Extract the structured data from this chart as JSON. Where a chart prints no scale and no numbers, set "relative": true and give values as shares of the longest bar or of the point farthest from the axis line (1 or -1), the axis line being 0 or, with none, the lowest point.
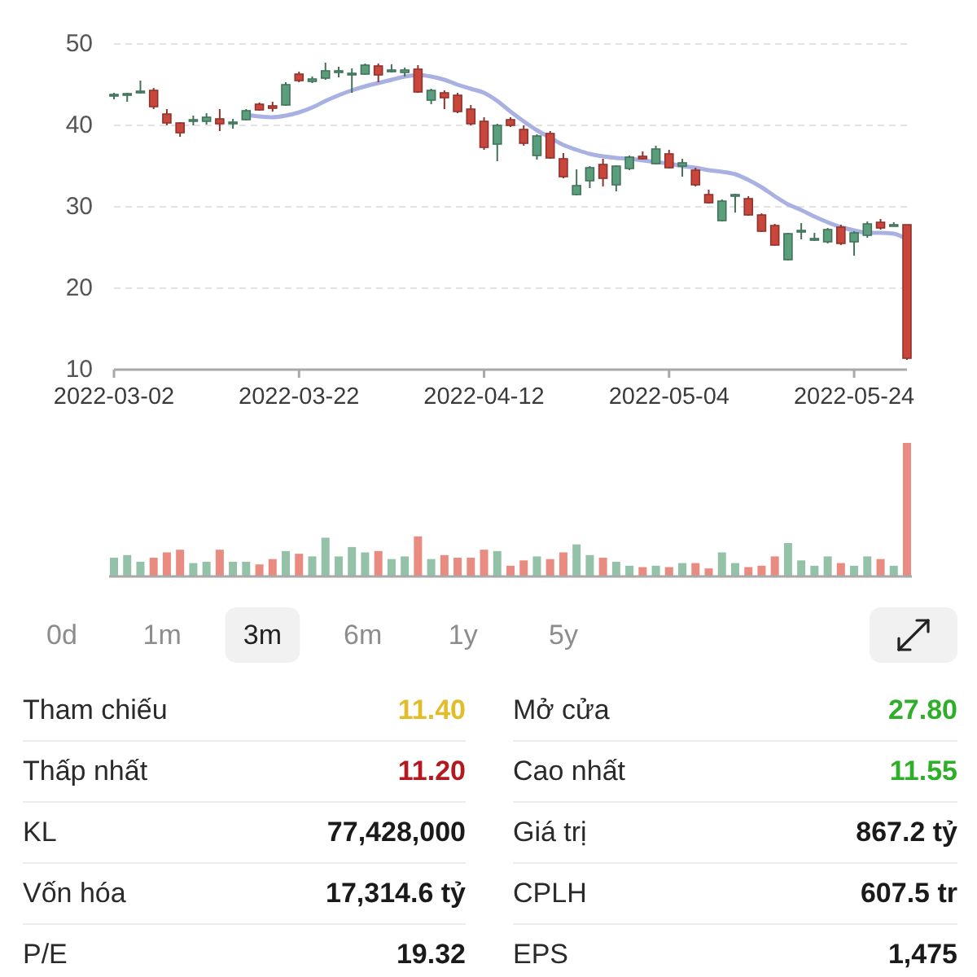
{
  "chart_data": [
    {
      "type": "candlestick",
      "categories": [
        "2022-03-02",
        null,
        null,
        null,
        null,
        null,
        null,
        null,
        null,
        null,
        null,
        null,
        null,
        null,
        "2022-03-22",
        null,
        null,
        null,
        null,
        null,
        null,
        null,
        null,
        null,
        null,
        null,
        null,
        null,
        "2022-04-12",
        null,
        null,
        null,
        null,
        null,
        null,
        null,
        null,
        null,
        null,
        null,
        null,
        null,
        "2022-05-04",
        null,
        null,
        null,
        null,
        null,
        null,
        null,
        null,
        null,
        null,
        null,
        null,
        null,
        "2022-05-24",
        null,
        null,
        null,
        null
      ],
      "ohlc": [
        [
          43.6,
          44.0,
          43.2,
          43.8
        ],
        [
          43.8,
          44.0,
          42.9,
          43.9
        ],
        [
          44.0,
          45.5,
          43.9,
          44.2
        ],
        [
          44.3,
          44.6,
          42.0,
          42.3
        ],
        [
          41.4,
          42.0,
          40.0,
          40.3
        ],
        [
          40.3,
          40.4,
          38.6,
          39.1
        ],
        [
          40.5,
          41.2,
          40.0,
          40.7
        ],
        [
          40.5,
          41.5,
          40.1,
          41.0
        ],
        [
          40.8,
          42.0,
          39.3,
          40.2
        ],
        [
          40.2,
          40.8,
          39.6,
          40.4
        ],
        [
          40.7,
          42.0,
          40.6,
          41.8
        ],
        [
          42.6,
          42.8,
          41.8,
          41.9
        ],
        [
          42.4,
          42.9,
          41.7,
          42.1
        ],
        [
          42.5,
          45.3,
          42.4,
          45.0
        ],
        [
          46.3,
          46.6,
          45.3,
          45.5
        ],
        [
          45.4,
          46.0,
          45.2,
          45.7
        ],
        [
          45.8,
          47.7,
          45.6,
          46.7
        ],
        [
          46.5,
          47.2,
          45.9,
          46.7
        ],
        [
          46.2,
          47.0,
          44.0,
          46.4
        ],
        [
          46.3,
          47.6,
          46.2,
          47.4
        ],
        [
          47.3,
          47.6,
          45.3,
          46.2
        ],
        [
          46.6,
          47.5,
          46.5,
          46.8
        ],
        [
          46.5,
          47.1,
          46.0,
          46.8
        ],
        [
          46.9,
          47.4,
          44.0,
          44.1
        ],
        [
          43.1,
          44.5,
          42.6,
          44.3
        ],
        [
          44.0,
          44.3,
          42.0,
          43.4
        ],
        [
          43.7,
          44.0,
          41.5,
          41.7
        ],
        [
          42.0,
          42.5,
          40.0,
          40.2
        ],
        [
          40.5,
          41.0,
          37.0,
          37.3
        ],
        [
          37.7,
          40.2,
          35.6,
          40.0
        ],
        [
          40.7,
          41.0,
          39.8,
          40.0
        ],
        [
          39.5,
          40.0,
          37.5,
          37.8
        ],
        [
          36.3,
          38.9,
          35.8,
          38.7
        ],
        [
          39.0,
          39.3,
          35.9,
          36.0
        ],
        [
          35.9,
          36.6,
          33.5,
          33.7
        ],
        [
          31.5,
          34.6,
          31.4,
          32.6
        ],
        [
          33.2,
          35.0,
          32.3,
          34.8
        ],
        [
          35.2,
          35.9,
          32.5,
          33.5
        ],
        [
          32.7,
          35.1,
          31.9,
          35.0
        ],
        [
          34.7,
          36.3,
          34.5,
          36.1
        ],
        [
          36.2,
          36.8,
          35.8,
          35.9
        ],
        [
          35.3,
          37.5,
          35.2,
          37.1
        ],
        [
          36.5,
          37.0,
          34.7,
          34.8
        ],
        [
          35.0,
          35.9,
          33.7,
          35.4
        ],
        [
          34.5,
          34.8,
          32.5,
          32.7
        ],
        [
          31.5,
          32.1,
          30.4,
          30.5
        ],
        [
          28.3,
          30.9,
          28.2,
          30.7
        ],
        [
          31.3,
          31.6,
          29.3,
          31.5
        ],
        [
          31.0,
          31.3,
          28.9,
          29.0
        ],
        [
          29.0,
          29.2,
          26.9,
          27.0
        ],
        [
          27.7,
          27.9,
          25.2,
          25.3
        ],
        [
          23.5,
          26.8,
          23.4,
          26.7
        ],
        [
          26.9,
          28.0,
          26.0,
          27.1
        ],
        [
          25.9,
          26.8,
          25.8,
          26.1
        ],
        [
          25.7,
          27.4,
          25.5,
          27.2
        ],
        [
          27.5,
          27.8,
          25.3,
          25.5
        ],
        [
          25.7,
          27.0,
          24.0,
          26.8
        ],
        [
          26.5,
          28.2,
          26.2,
          27.9
        ],
        [
          28.1,
          28.5,
          27.2,
          27.4
        ],
        [
          27.7,
          28.1,
          27.6,
          27.8
        ],
        [
          27.8,
          27.8,
          11.2,
          11.4
        ]
      ],
      "colors": [
        "#5a9e7c",
        "#5a9e7c",
        "#5a9e7c",
        "#c8463c",
        "#c8463c",
        "#c8463c",
        "#5a9e7c",
        "#5a9e7c",
        "#c8463c",
        "#5a9e7c",
        "#5a9e7c",
        "#c8463c",
        "#c8463c",
        "#5a9e7c",
        "#c8463c",
        "#5a9e7c",
        "#5a9e7c",
        "#5a9e7c",
        "#5a9e7c",
        "#5a9e7c",
        "#c8463c",
        "#5a9e7c",
        "#5a9e7c",
        "#c8463c",
        "#5a9e7c",
        "#c8463c",
        "#c8463c",
        "#c8463c",
        "#c8463c",
        "#5a9e7c",
        "#c8463c",
        "#c8463c",
        "#5a9e7c",
        "#c8463c",
        "#c8463c",
        "#5a9e7c",
        "#5a9e7c",
        "#c8463c",
        "#5a9e7c",
        "#5a9e7c",
        "#c8463c",
        "#5a9e7c",
        "#c8463c",
        "#5a9e7c",
        "#c8463c",
        "#c8463c",
        "#5a9e7c",
        "#5a9e7c",
        "#c8463c",
        "#c8463c",
        "#c8463c",
        "#5a9e7c",
        "#5a9e7c",
        "#5a9e7c",
        "#5a9e7c",
        "#c8463c",
        "#5a9e7c",
        "#5a9e7c",
        "#c8463c",
        "#5a9e7c",
        "#c8463c"
      ],
      "series": [
        {
          "type": "line",
          "color": "#a9b1e3",
          "values": [
            null,
            null,
            null,
            null,
            null,
            null,
            null,
            null,
            null,
            null,
            41.3,
            41.1,
            41.0,
            41.2,
            41.6,
            42.2,
            43.0,
            43.7,
            44.3,
            44.8,
            45.2,
            45.6,
            46.0,
            46.2,
            46.0,
            45.6,
            45.0,
            44.5,
            44.0,
            43.0,
            41.7,
            40.5,
            39.4,
            38.5,
            37.6,
            37.0,
            36.5,
            36.2,
            36.0,
            35.9,
            35.7,
            35.5,
            35.3,
            35.0,
            34.8,
            34.5,
            34.3,
            34.0,
            33.3,
            32.4,
            31.3,
            30.3,
            29.6,
            28.8,
            28.1,
            27.5,
            27.1,
            26.8,
            26.8,
            26.7,
            26.0
          ]
        }
      ],
      "ylim": [
        10,
        50
      ],
      "yticks": [
        10,
        20,
        30,
        40,
        50
      ],
      "grid": "y"
    },
    {
      "type": "bar",
      "relative": true,
      "categories": [
        null,
        null,
        null,
        null,
        null,
        null,
        null,
        null,
        null,
        null,
        null,
        null,
        null,
        null,
        null,
        null,
        null,
        null,
        null,
        null,
        null,
        null,
        null,
        null,
        null,
        null,
        null,
        null,
        null,
        null,
        null,
        null,
        null,
        null,
        null,
        null,
        null,
        null,
        null,
        null,
        null,
        null,
        null,
        null,
        null,
        null,
        null,
        null,
        null,
        null,
        null,
        null,
        null,
        null,
        null,
        null,
        null,
        null,
        null,
        null,
        null
      ],
      "values": [
        0.14,
        0.16,
        0.11,
        0.14,
        0.18,
        0.2,
        0.1,
        0.11,
        0.2,
        0.11,
        0.11,
        0.09,
        0.13,
        0.19,
        0.17,
        0.15,
        0.29,
        0.15,
        0.22,
        0.18,
        0.19,
        0.13,
        0.15,
        0.3,
        0.13,
        0.16,
        0.14,
        0.14,
        0.2,
        0.19,
        0.08,
        0.12,
        0.15,
        0.13,
        0.18,
        0.24,
        0.16,
        0.14,
        0.11,
        0.08,
        0.07,
        0.08,
        0.07,
        0.1,
        0.1,
        0.06,
        0.18,
        0.1,
        0.07,
        0.08,
        0.15,
        0.25,
        0.12,
        0.08,
        0.15,
        0.1,
        0.08,
        0.15,
        0.13,
        0.08,
        1
      ],
      "colors": [
        "#93c2a8",
        "#93c2a8",
        "#93c2a8",
        "#e98b80",
        "#e98b80",
        "#e98b80",
        "#93c2a8",
        "#93c2a8",
        "#e98b80",
        "#93c2a8",
        "#93c2a8",
        "#e98b80",
        "#e98b80",
        "#93c2a8",
        "#e98b80",
        "#93c2a8",
        "#93c2a8",
        "#93c2a8",
        "#93c2a8",
        "#93c2a8",
        "#e98b80",
        "#93c2a8",
        "#93c2a8",
        "#e98b80",
        "#93c2a8",
        "#e98b80",
        "#e98b80",
        "#e98b80",
        "#e98b80",
        "#93c2a8",
        "#e98b80",
        "#e98b80",
        "#93c2a8",
        "#e98b80",
        "#e98b80",
        "#93c2a8",
        "#93c2a8",
        "#e98b80",
        "#93c2a8",
        "#93c2a8",
        "#e98b80",
        "#93c2a8",
        "#e98b80",
        "#93c2a8",
        "#e98b80",
        "#e98b80",
        "#93c2a8",
        "#93c2a8",
        "#e98b80",
        "#e98b80",
        "#e98b80",
        "#93c2a8",
        "#93c2a8",
        "#93c2a8",
        "#93c2a8",
        "#e98b80",
        "#93c2a8",
        "#93c2a8",
        "#e98b80",
        "#93c2a8",
        "#e98b80"
      ]
    },
    {
      "type": "other",
      "categories": [
        "0d",
        "1m",
        "3m",
        "6m",
        "1y",
        "5y"
      ],
      "colors": [
        null,
        null,
        "#f1f1f1",
        null,
        null,
        null
      ]
    },
    {
      "type": "other",
      "categories": [
        "Tham chiếu",
        "Mở cửa",
        "Thấp nhất",
        "Cao nhất",
        "KL",
        "Giá trị",
        "Vốn hóa",
        "CPLH",
        "P/E",
        "EPS"
      ],
      "value_labels": [
        "11.40",
        "27.80",
        "11.20",
        "11.55",
        "77,428,000",
        "867.2 tỷ",
        "17,314.6 tỷ",
        "607.5 tr",
        "19.32",
        "1,475"
      ],
      "colors": [
        "#e2bd2a",
        "#2fae2a",
        "#b3191f",
        "#2fae2a",
        "#1a1a1a",
        "#1a1a1a",
        "#1a1a1a",
        "#1a1a1a",
        "#1a1a1a",
        "#1a1a1a"
      ]
    }
  ]
}
